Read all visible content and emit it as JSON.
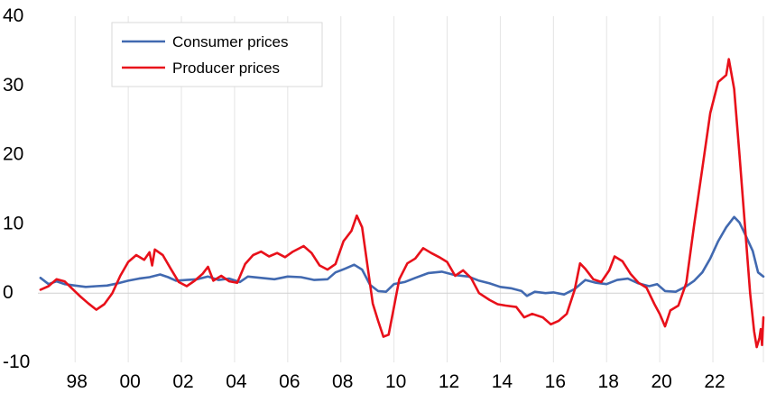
{
  "chart_data": {
    "type": "line",
    "title": "",
    "xlabel": "",
    "ylabel": "",
    "ylim": [
      -10,
      40
    ],
    "xlim": [
      1996.6,
      2023.9
    ],
    "y_ticks": [
      40,
      30,
      20,
      10,
      0,
      -10
    ],
    "y_tick_labels": [
      "40",
      "30",
      "20",
      "10",
      "0",
      "-10"
    ],
    "x_ticks": [
      1998,
      2000,
      2002,
      2004,
      2006,
      2008,
      2010,
      2012,
      2014,
      2016,
      2018,
      2020,
      2022
    ],
    "x_tick_labels": [
      "98",
      "00",
      "02",
      "04",
      "06",
      "08",
      "10",
      "12",
      "14",
      "16",
      "18",
      "20",
      "22"
    ],
    "grid": "vertical",
    "legend_position": "top-left",
    "series": [
      {
        "name": "Consumer prices",
        "color": "#4169b0",
        "points": [
          [
            1996.7,
            2.2
          ],
          [
            1997.0,
            1.3
          ],
          [
            1997.3,
            1.7
          ],
          [
            1997.6,
            1.3
          ],
          [
            1998.0,
            1.1
          ],
          [
            1998.4,
            0.9
          ],
          [
            1998.8,
            1.0
          ],
          [
            1999.2,
            1.1
          ],
          [
            1999.6,
            1.4
          ],
          [
            2000.0,
            1.8
          ],
          [
            2000.4,
            2.1
          ],
          [
            2000.8,
            2.3
          ],
          [
            2001.2,
            2.7
          ],
          [
            2001.5,
            2.3
          ],
          [
            2001.8,
            1.8
          ],
          [
            2002.2,
            1.9
          ],
          [
            2002.6,
            2.0
          ],
          [
            2003.0,
            2.4
          ],
          [
            2003.4,
            1.9
          ],
          [
            2003.8,
            2.1
          ],
          [
            2004.2,
            1.6
          ],
          [
            2004.5,
            2.4
          ],
          [
            2005.0,
            2.2
          ],
          [
            2005.5,
            2.0
          ],
          [
            2006.0,
            2.4
          ],
          [
            2006.5,
            2.3
          ],
          [
            2007.0,
            1.9
          ],
          [
            2007.5,
            2.0
          ],
          [
            2007.8,
            3.0
          ],
          [
            2008.2,
            3.6
          ],
          [
            2008.5,
            4.1
          ],
          [
            2008.8,
            3.4
          ],
          [
            2009.1,
            1.2
          ],
          [
            2009.4,
            0.3
          ],
          [
            2009.7,
            0.2
          ],
          [
            2010.0,
            1.3
          ],
          [
            2010.4,
            1.6
          ],
          [
            2010.8,
            2.2
          ],
          [
            2011.3,
            2.9
          ],
          [
            2011.8,
            3.1
          ],
          [
            2012.3,
            2.6
          ],
          [
            2012.8,
            2.4
          ],
          [
            2013.2,
            1.8
          ],
          [
            2013.6,
            1.4
          ],
          [
            2014.0,
            0.9
          ],
          [
            2014.4,
            0.7
          ],
          [
            2014.8,
            0.3
          ],
          [
            2015.0,
            -0.4
          ],
          [
            2015.3,
            0.2
          ],
          [
            2015.7,
            0.0
          ],
          [
            2016.0,
            0.1
          ],
          [
            2016.4,
            -0.2
          ],
          [
            2016.8,
            0.6
          ],
          [
            2017.2,
            1.9
          ],
          [
            2017.6,
            1.5
          ],
          [
            2018.0,
            1.3
          ],
          [
            2018.4,
            1.9
          ],
          [
            2018.8,
            2.1
          ],
          [
            2019.2,
            1.4
          ],
          [
            2019.6,
            1.0
          ],
          [
            2019.9,
            1.3
          ],
          [
            2020.2,
            0.3
          ],
          [
            2020.6,
            0.2
          ],
          [
            2021.0,
            1.0
          ],
          [
            2021.3,
            1.8
          ],
          [
            2021.6,
            3.0
          ],
          [
            2021.9,
            5.0
          ],
          [
            2022.2,
            7.5
          ],
          [
            2022.5,
            9.5
          ],
          [
            2022.8,
            11.0
          ],
          [
            2023.0,
            10.2
          ],
          [
            2023.2,
            8.6
          ],
          [
            2023.5,
            6.1
          ],
          [
            2023.7,
            3.0
          ],
          [
            2023.9,
            2.4
          ]
        ]
      },
      {
        "name": "Producer prices",
        "color": "#e8101a",
        "points": [
          [
            1996.7,
            0.5
          ],
          [
            1997.0,
            1.0
          ],
          [
            1997.3,
            2.0
          ],
          [
            1997.6,
            1.7
          ],
          [
            1997.9,
            0.6
          ],
          [
            1998.2,
            -0.5
          ],
          [
            1998.5,
            -1.5
          ],
          [
            1998.8,
            -2.4
          ],
          [
            1999.1,
            -1.6
          ],
          [
            1999.4,
            0.0
          ],
          [
            1999.7,
            2.5
          ],
          [
            2000.0,
            4.5
          ],
          [
            2000.3,
            5.5
          ],
          [
            2000.6,
            4.8
          ],
          [
            2000.8,
            5.9
          ],
          [
            2000.9,
            4.0
          ],
          [
            2001.0,
            6.3
          ],
          [
            2001.3,
            5.5
          ],
          [
            2001.6,
            3.5
          ],
          [
            2001.9,
            1.6
          ],
          [
            2002.2,
            1.0
          ],
          [
            2002.5,
            1.8
          ],
          [
            2002.8,
            2.8
          ],
          [
            2003.0,
            3.8
          ],
          [
            2003.2,
            1.8
          ],
          [
            2003.5,
            2.5
          ],
          [
            2003.8,
            1.7
          ],
          [
            2004.1,
            1.5
          ],
          [
            2004.4,
            4.2
          ],
          [
            2004.7,
            5.5
          ],
          [
            2005.0,
            6.0
          ],
          [
            2005.3,
            5.3
          ],
          [
            2005.6,
            5.8
          ],
          [
            2005.9,
            5.2
          ],
          [
            2006.2,
            6.0
          ],
          [
            2006.6,
            6.8
          ],
          [
            2006.9,
            5.8
          ],
          [
            2007.2,
            4.0
          ],
          [
            2007.5,
            3.4
          ],
          [
            2007.8,
            4.2
          ],
          [
            2008.1,
            7.5
          ],
          [
            2008.4,
            9.0
          ],
          [
            2008.6,
            11.2
          ],
          [
            2008.8,
            9.5
          ],
          [
            2009.0,
            4.0
          ],
          [
            2009.2,
            -1.5
          ],
          [
            2009.4,
            -4.0
          ],
          [
            2009.6,
            -6.3
          ],
          [
            2009.8,
            -6.0
          ],
          [
            2010.0,
            -2.0
          ],
          [
            2010.2,
            2.0
          ],
          [
            2010.5,
            4.3
          ],
          [
            2010.8,
            5.0
          ],
          [
            2011.1,
            6.5
          ],
          [
            2011.4,
            5.8
          ],
          [
            2011.7,
            5.2
          ],
          [
            2012.0,
            4.5
          ],
          [
            2012.3,
            2.5
          ],
          [
            2012.6,
            3.3
          ],
          [
            2012.9,
            2.2
          ],
          [
            2013.2,
            0.0
          ],
          [
            2013.6,
            -1.0
          ],
          [
            2013.9,
            -1.6
          ],
          [
            2014.2,
            -1.8
          ],
          [
            2014.6,
            -2.0
          ],
          [
            2014.9,
            -3.5
          ],
          [
            2015.2,
            -3.0
          ],
          [
            2015.6,
            -3.5
          ],
          [
            2015.9,
            -4.5
          ],
          [
            2016.2,
            -4.0
          ],
          [
            2016.5,
            -3.0
          ],
          [
            2016.8,
            0.5
          ],
          [
            2017.0,
            4.3
          ],
          [
            2017.2,
            3.5
          ],
          [
            2017.5,
            2.0
          ],
          [
            2017.8,
            1.6
          ],
          [
            2018.1,
            3.3
          ],
          [
            2018.3,
            5.3
          ],
          [
            2018.6,
            4.6
          ],
          [
            2018.9,
            2.8
          ],
          [
            2019.2,
            1.5
          ],
          [
            2019.5,
            0.8
          ],
          [
            2019.8,
            -1.6
          ],
          [
            2020.0,
            -3.0
          ],
          [
            2020.2,
            -4.8
          ],
          [
            2020.4,
            -2.5
          ],
          [
            2020.7,
            -1.8
          ],
          [
            2021.0,
            1.5
          ],
          [
            2021.3,
            10.0
          ],
          [
            2021.6,
            18.0
          ],
          [
            2021.9,
            26.0
          ],
          [
            2022.2,
            30.5
          ],
          [
            2022.5,
            31.5
          ],
          [
            2022.6,
            33.8
          ],
          [
            2022.8,
            29.5
          ],
          [
            2023.0,
            20.0
          ],
          [
            2023.2,
            10.0
          ],
          [
            2023.4,
            0.0
          ],
          [
            2023.55,
            -5.5
          ],
          [
            2023.65,
            -7.8
          ],
          [
            2023.75,
            -6.5
          ],
          [
            2023.8,
            -5.2
          ],
          [
            2023.85,
            -7.5
          ],
          [
            2023.9,
            -3.5
          ]
        ]
      }
    ]
  }
}
